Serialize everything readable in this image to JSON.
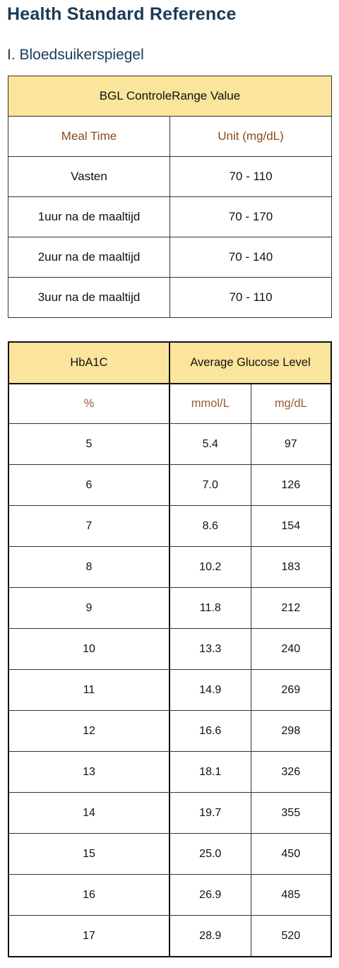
{
  "page": {
    "title": "Health Standard Reference",
    "section_title": "I. Bloedsuikerspiegel"
  },
  "bgl_table": {
    "header": "BGL ControleRange Value",
    "columns": [
      "Meal Time",
      "Unit (mg/dL)"
    ],
    "rows": [
      {
        "meal_time": "Vasten",
        "range": "70 - 110"
      },
      {
        "meal_time": "1uur na de maaltijd",
        "range": "70 - 170"
      },
      {
        "meal_time": "2uur na de maaltijd",
        "range": "70 - 140"
      },
      {
        "meal_time": "3uur na de maaltijd",
        "range": "70 - 110"
      }
    ]
  },
  "hba1c_table": {
    "header_left": "HbA1C",
    "header_right": "Average Glucose Level",
    "units": [
      "%",
      "mmol/L",
      "mg/dL"
    ],
    "rows": [
      {
        "pct": "5",
        "mmol": "5.4",
        "mgdl": "97"
      },
      {
        "pct": "6",
        "mmol": "7.0",
        "mgdl": "126"
      },
      {
        "pct": "7",
        "mmol": "8.6",
        "mgdl": "154"
      },
      {
        "pct": "8",
        "mmol": "10.2",
        "mgdl": "183"
      },
      {
        "pct": "9",
        "mmol": "11.8",
        "mgdl": "212"
      },
      {
        "pct": "10",
        "mmol": "13.3",
        "mgdl": "240"
      },
      {
        "pct": "11",
        "mmol": "14.9",
        "mgdl": "269"
      },
      {
        "pct": "12",
        "mmol": "16.6",
        "mgdl": "298"
      },
      {
        "pct": "13",
        "mmol": "18.1",
        "mgdl": "326"
      },
      {
        "pct": "14",
        "mmol": "19.7",
        "mgdl": "355"
      },
      {
        "pct": "15",
        "mmol": "25.0",
        "mgdl": "450"
      },
      {
        "pct": "16",
        "mmol": "26.9",
        "mgdl": "485"
      },
      {
        "pct": "17",
        "mmol": "28.9",
        "mgdl": "520"
      }
    ]
  },
  "colors": {
    "header_bg": "#fbe49b",
    "title": "#1b3a55",
    "sub_header": "#8b4a1c"
  }
}
